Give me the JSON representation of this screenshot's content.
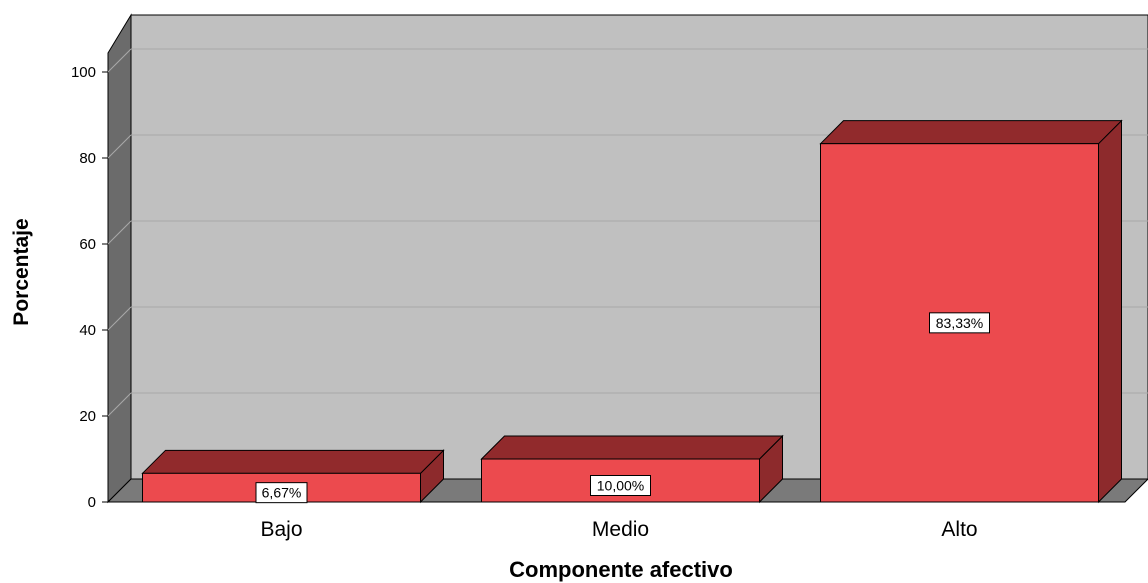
{
  "chart_data": {
    "type": "bar",
    "categories": [
      "Bajo",
      "Medio",
      "Alto"
    ],
    "values": [
      6.67,
      10.0,
      83.33
    ],
    "data_labels": [
      "6,67%",
      "10,00%",
      "83,33%"
    ],
    "xlabel": "Componente afectivo",
    "ylabel": "Porcentaje",
    "ylim": [
      0,
      100
    ],
    "yticks": [
      0,
      20,
      40,
      60,
      80,
      100
    ],
    "grid": true,
    "style": "3d",
    "colors": {
      "bar_front": "#ec4a4e",
      "bar_top": "#912a2c",
      "bar_side": "#8d2a2c",
      "plot_back": "#c0c0c0",
      "plot_side": "#6b6b6b",
      "floor": "#7a7a7a",
      "gridline": "#a8a8a8"
    }
  }
}
